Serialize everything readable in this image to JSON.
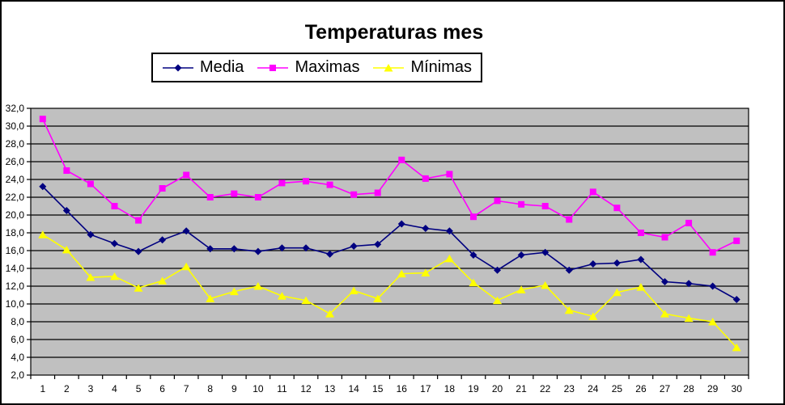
{
  "window": {
    "background": "#ffffff",
    "border_color": "#000000",
    "text_color": "#000000"
  },
  "chart_data": {
    "type": "line",
    "title": "Temperaturas mes",
    "xlabel": "",
    "ylabel": "",
    "categories": [
      1,
      2,
      3,
      4,
      5,
      6,
      7,
      8,
      9,
      10,
      11,
      12,
      13,
      14,
      15,
      16,
      17,
      18,
      19,
      20,
      21,
      22,
      23,
      24,
      25,
      26,
      27,
      28,
      29,
      30
    ],
    "series": [
      {
        "name": "Media",
        "color": "#000080",
        "marker": "diamond",
        "values": [
          23.2,
          20.5,
          17.8,
          16.8,
          15.9,
          17.2,
          18.2,
          16.2,
          16.2,
          15.9,
          16.3,
          16.3,
          15.6,
          16.5,
          16.7,
          19.0,
          18.5,
          18.2,
          15.5,
          13.8,
          15.5,
          15.8,
          13.8,
          14.5,
          14.6,
          15.0,
          12.5,
          12.3,
          12.0,
          10.5
        ]
      },
      {
        "name": "Maximas",
        "color": "#FF00FF",
        "marker": "square",
        "values": [
          30.8,
          25.0,
          23.5,
          21.0,
          19.4,
          23.0,
          24.5,
          22.0,
          22.4,
          22.0,
          23.6,
          23.8,
          23.4,
          22.3,
          22.5,
          26.2,
          24.1,
          24.6,
          19.8,
          21.6,
          21.2,
          21.0,
          19.5,
          22.6,
          20.8,
          18.0,
          17.5,
          19.1,
          15.8,
          17.1
        ]
      },
      {
        "name": "Mínimas",
        "color": "#FFFF00",
        "marker": "triangle",
        "values": [
          17.8,
          16.1,
          13.0,
          13.1,
          11.8,
          12.6,
          14.2,
          10.6,
          11.4,
          12.0,
          10.9,
          10.4,
          8.9,
          11.5,
          10.6,
          13.4,
          13.5,
          15.1,
          12.4,
          10.4,
          11.6,
          12.1,
          9.3,
          8.6,
          11.3,
          11.9,
          8.9,
          8.4,
          8.0,
          5.1
        ]
      }
    ],
    "ylim": [
      2,
      32
    ],
    "y_tick_step": 2,
    "y_tick_labels": [
      "2,0",
      "4,0",
      "6,0",
      "8,0",
      "10,0",
      "12,0",
      "14,0",
      "16,0",
      "18,0",
      "20,0",
      "22,0",
      "24,0",
      "26,0",
      "28,0",
      "30,0",
      "32,0"
    ],
    "grid": true,
    "grid_color": "#000000",
    "plot_bg": "#C0C0C0",
    "legend_position": "top",
    "legend_order": [
      "Media",
      "Maximas",
      "Mínimas"
    ]
  }
}
